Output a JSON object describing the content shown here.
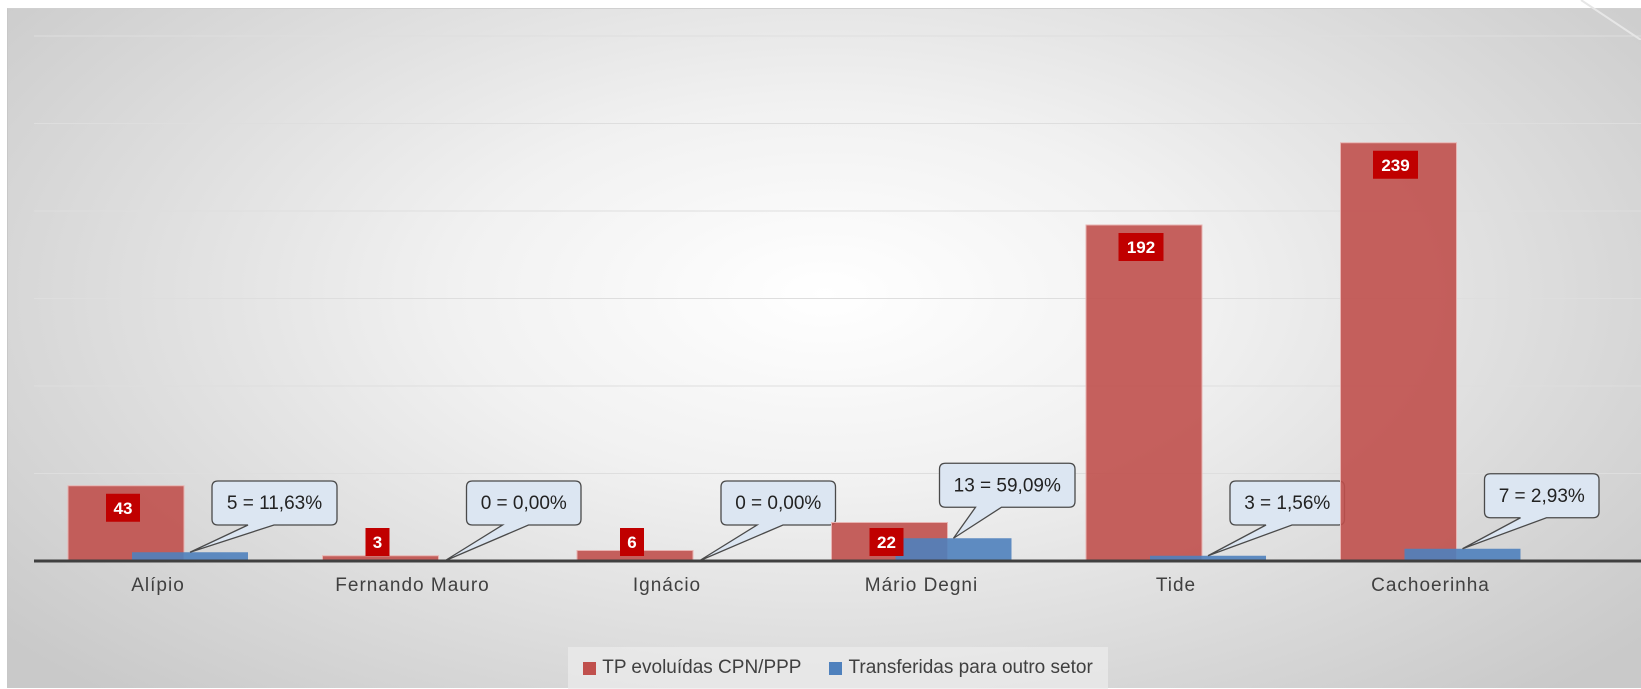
{
  "chart_data": {
    "type": "bar",
    "categories": [
      "Alípio",
      "Fernando Mauro",
      "Ignácio",
      "Mário Degni",
      "Tide",
      "Cachoerinha"
    ],
    "series": [
      {
        "name": "TP evoluídas CPN/PPP",
        "values": [
          43,
          3,
          6,
          22,
          192,
          239
        ],
        "data_labels": [
          "43",
          "3",
          "6",
          "22",
          "192",
          "239"
        ],
        "color": "#c0504d"
      },
      {
        "name": "Transferidas para outro setor",
        "values": [
          5,
          0,
          0,
          13,
          3,
          7
        ],
        "data_labels": [
          "5 = 11,63%",
          "0 = 0,00%",
          "0 = 0,00%",
          "13 = 59,09%",
          "3 = 1,56%",
          "7 = 2,93%"
        ],
        "color": "#4f81bd"
      }
    ],
    "ylim": [
      0,
      300
    ],
    "gridlines": true,
    "legend_position": "bottom",
    "label_badge_color": "#c00000",
    "callout_fill": "#dce6f2",
    "callout_border": "#4a4a4a"
  }
}
